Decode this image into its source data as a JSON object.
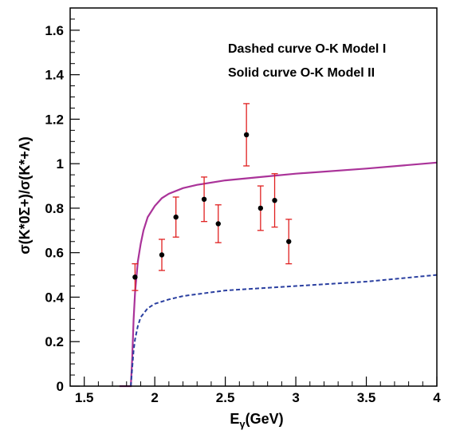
{
  "chart_data": {
    "type": "scatter",
    "xlabel": "E",
    "xlabel_sub": "γ",
    "xlabel_unit": "(GeV)",
    "ylabel": "σ(K*0Σ+)/σ(K*+Λ)",
    "xlim": [
      1.4,
      4.0
    ],
    "ylim": [
      0,
      1.7
    ],
    "xticks": [
      1.5,
      2,
      2.5,
      3,
      3.5,
      4
    ],
    "xtick_labels": [
      "1.5",
      "2",
      "2.5",
      "3",
      "3.5",
      "4"
    ],
    "yticks": [
      0,
      0.2,
      0.4,
      0.6,
      0.8,
      1,
      1.2,
      1.4,
      1.6
    ],
    "ytick_labels": [
      "0",
      "0.2",
      "0.4",
      "0.6",
      "0.8",
      "1",
      "1.2",
      "1.4",
      "1.6"
    ],
    "annotations": [
      "Dashed curve O-K Model I",
      "Solid curve O-K Model II"
    ],
    "points": [
      {
        "x": 1.86,
        "y": 0.49,
        "err": 0.06
      },
      {
        "x": 2.05,
        "y": 0.59,
        "err": 0.07
      },
      {
        "x": 2.15,
        "y": 0.76,
        "err": 0.09
      },
      {
        "x": 2.35,
        "y": 0.84,
        "err": 0.1
      },
      {
        "x": 2.45,
        "y": 0.73,
        "err": 0.085
      },
      {
        "x": 2.65,
        "y": 1.13,
        "err": 0.14
      },
      {
        "x": 2.75,
        "y": 0.8,
        "err": 0.1
      },
      {
        "x": 2.85,
        "y": 0.835,
        "err": 0.12
      },
      {
        "x": 2.95,
        "y": 0.65,
        "err": 0.1
      }
    ],
    "series": [
      {
        "style": "solid",
        "color": "#aa3399",
        "x": [
          1.75,
          1.83,
          1.84,
          1.85,
          1.86,
          1.88,
          1.9,
          1.92,
          1.95,
          2.0,
          2.05,
          2.1,
          2.2,
          2.3,
          2.5,
          2.75,
          3.0,
          3.5,
          4.0
        ],
        "y": [
          0,
          0,
          0.12,
          0.3,
          0.42,
          0.56,
          0.64,
          0.7,
          0.76,
          0.81,
          0.845,
          0.865,
          0.89,
          0.905,
          0.925,
          0.94,
          0.955,
          0.978,
          1.005
        ]
      },
      {
        "style": "dashed",
        "color": "#2a3fa0",
        "x": [
          1.83,
          1.84,
          1.85,
          1.86,
          1.88,
          1.9,
          1.95,
          2.0,
          2.1,
          2.2,
          2.5,
          3.0,
          3.5,
          4.0
        ],
        "y": [
          0,
          0.08,
          0.16,
          0.21,
          0.27,
          0.31,
          0.35,
          0.37,
          0.39,
          0.405,
          0.43,
          0.45,
          0.47,
          0.5
        ]
      }
    ],
    "colors": {
      "axis": "#000000",
      "errorbar": "#e02020",
      "marker": "#000000"
    }
  }
}
